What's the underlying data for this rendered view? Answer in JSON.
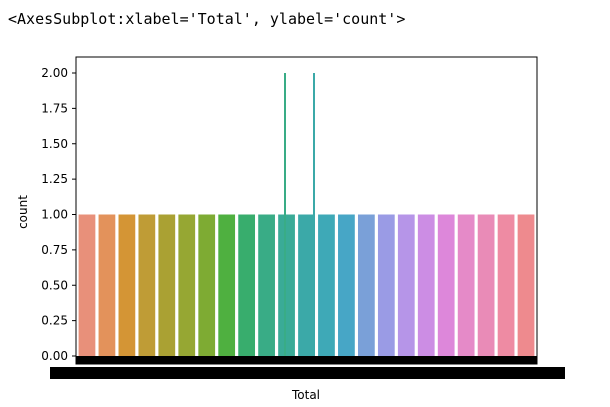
{
  "output_repr": "<AxesSubplot:xlabel='Total', ylabel='count'>",
  "chart_data": {
    "type": "bar",
    "xlabel": "Total",
    "ylabel": "count",
    "ylim": [
      0,
      2.0
    ],
    "yticks": [
      "0.00",
      "0.25",
      "0.50",
      "0.75",
      "1.00",
      "1.25",
      "1.50",
      "1.75",
      "2.00"
    ],
    "ytick_values": [
      0,
      0.25,
      0.5,
      0.75,
      1.0,
      1.25,
      1.5,
      1.75,
      2.0
    ],
    "grid": false,
    "legend": "none",
    "visible_bars": {
      "values": [
        1,
        1,
        1,
        1,
        1,
        1,
        1,
        1,
        1,
        1,
        1,
        1,
        1,
        1,
        1,
        1,
        1,
        1,
        1,
        1,
        1,
        1,
        1
      ],
      "colors": [
        "#e8907a",
        "#e3925b",
        "#d49535",
        "#bf9c36",
        "#aaa133",
        "#96a733",
        "#7eab33",
        "#4fb040",
        "#38ad6d",
        "#39ac86",
        "#3aab97",
        "#3ba9a8",
        "#3ea9b7",
        "#47a6c6",
        "#7aa0d8",
        "#9a9be5",
        "#b695e8",
        "#cc8de4",
        "#dd87da",
        "#e58ac8",
        "#e98bb7",
        "#ee8ba3",
        "#ee8a8e"
      ]
    },
    "spikes": {
      "values": [
        2,
        2
      ],
      "colors": [
        "#39ac86",
        "#3ba9a8"
      ]
    },
    "x_tick_count": "many (overlapping, unreadable)"
  }
}
